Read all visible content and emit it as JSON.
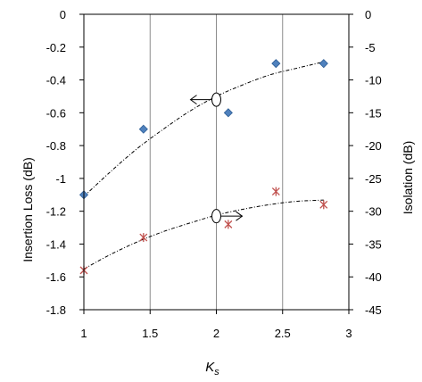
{
  "chart_data": {
    "type": "scatter",
    "title": "",
    "xlabel": "K",
    "xlabel_subscript": "s",
    "ylabel": "Insertion Loss (dB)",
    "y2label": "Isolation (dB)",
    "xlim": [
      1,
      3
    ],
    "ylim": [
      -1.8,
      0
    ],
    "y2lim": [
      -45,
      0
    ],
    "x_ticks": [
      "1",
      "1.5",
      "2",
      "2.5",
      "3"
    ],
    "y_ticks": [
      "0",
      "-0.2",
      "-0.4",
      "-0.6",
      "-0.8",
      "-1",
      "-1.2",
      "-1.4",
      "-1.6",
      "-1.8"
    ],
    "y2_ticks": [
      "0",
      "-5",
      "-10",
      "-15",
      "-20",
      "-25",
      "-30",
      "-35",
      "-40",
      "-45"
    ],
    "grid": "vertical",
    "legend": "none",
    "series": [
      {
        "axis": "left",
        "marker": "diamond",
        "color": "#4f81bd",
        "x": [
          1.0,
          1.45,
          2.09,
          2.45,
          2.81
        ],
        "y": [
          -1.1,
          -0.7,
          -0.6,
          -0.3,
          -0.3
        ],
        "trend_x": [
          1.0,
          1.2,
          1.4,
          1.6,
          1.8,
          2.0,
          2.2,
          2.4,
          2.6,
          2.81
        ],
        "trend_y": [
          -1.11,
          -0.96,
          -0.82,
          -0.7,
          -0.59,
          -0.5,
          -0.43,
          -0.37,
          -0.33,
          -0.29
        ]
      },
      {
        "axis": "right",
        "marker": "star",
        "color": "#c0504d",
        "x": [
          1.0,
          1.45,
          2.09,
          2.45,
          2.81
        ],
        "y": [
          -39,
          -34,
          -32,
          -27,
          -29
        ],
        "trend_x": [
          1.0,
          1.2,
          1.4,
          1.6,
          1.8,
          2.0,
          2.2,
          2.4,
          2.6,
          2.81
        ],
        "trend_y": [
          -38.8,
          -36.6,
          -34.7,
          -33.1,
          -31.8,
          -30.6,
          -29.7,
          -29.0,
          -28.5,
          -28.3
        ]
      }
    ],
    "annotations": [
      {
        "type": "axis-pointer",
        "direction": "left",
        "x": 2.0,
        "y": -0.52,
        "axis": "left"
      },
      {
        "type": "axis-pointer",
        "direction": "right",
        "x": 2.0,
        "y": -1.23,
        "axis": "left"
      }
    ]
  }
}
